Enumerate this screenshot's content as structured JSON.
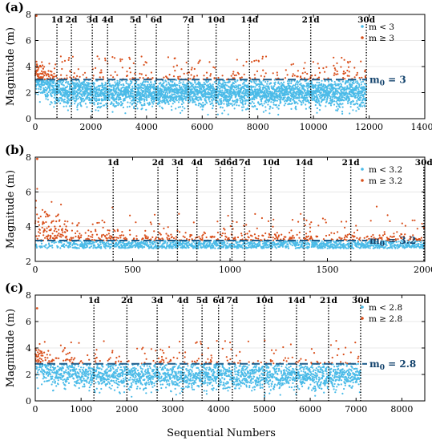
{
  "figure": {
    "shared_ylabel": "Magnitude (m)",
    "xlabel": "Sequential Numbers"
  },
  "colors": {
    "below": "#4bbbe8",
    "above": "#d9501c",
    "threshold_line": "#1b5b8a",
    "day_line": "#000000"
  },
  "chart_data": [
    {
      "type": "scatter",
      "panel_label": "(a)",
      "xlim": [
        0,
        14000
      ],
      "ylim": [
        0,
        8
      ],
      "xticks": [
        "0",
        "2000",
        "4000",
        "6000",
        "8000",
        "10000",
        "12000",
        "14000"
      ],
      "yticks": [
        "0",
        "2",
        "4",
        "6",
        "8"
      ],
      "ylabel": "Magnitude (m)",
      "n_events": 11900,
      "threshold": 3,
      "threshold_label_prefix": "m",
      "threshold_label_sub": "0",
      "threshold_label_suffix": " = 3",
      "legend": [
        "m < 3",
        "m ≥ 3"
      ],
      "day_markers": [
        {
          "label": "1d",
          "x": 780
        },
        {
          "label": "2d",
          "x": 1300
        },
        {
          "label": "3d",
          "x": 2050
        },
        {
          "label": "4d",
          "x": 2600
        },
        {
          "label": "5d",
          "x": 3600
        },
        {
          "label": "6d",
          "x": 4350
        },
        {
          "label": "7d",
          "x": 5500
        },
        {
          "label": "10d",
          "x": 6500
        },
        {
          "label": "14d",
          "x": 7700
        },
        {
          "label": "21d",
          "x": 9900
        },
        {
          "label": "30d",
          "x": 11900
        }
      ],
      "series": [
        {
          "name": "m < 3",
          "values_summary": "dense points mostly between 0.5 and 3.0 across x = 0–11900"
        },
        {
          "name": "m ≥ 3",
          "values_summary": "sparse points between 3.0 and 5.5, densest for x < 600, max near 8 at x ≈ 50"
        }
      ]
    },
    {
      "type": "scatter",
      "panel_label": "(b)",
      "xlim": [
        0,
        2000
      ],
      "ylim": [
        2,
        8
      ],
      "xticks": [
        "0",
        "500",
        "1000",
        "1500",
        "2000"
      ],
      "yticks": [
        "2",
        "4",
        "6",
        "8"
      ],
      "ylabel": "Magnitude (m)",
      "n_events": 2000,
      "threshold": 3.2,
      "threshold_label_prefix": "m",
      "threshold_label_sub": "0",
      "threshold_label_suffix": " = 3.2",
      "legend": [
        "m < 3.2",
        "m ≥ 3.2"
      ],
      "day_markers": [
        {
          "label": "1d",
          "x": 400
        },
        {
          "label": "2d",
          "x": 630
        },
        {
          "label": "3d",
          "x": 730
        },
        {
          "label": "4d",
          "x": 830
        },
        {
          "label": "5d",
          "x": 950
        },
        {
          "label": "6d",
          "x": 1010
        },
        {
          "label": "7d",
          "x": 1075
        },
        {
          "label": "10d",
          "x": 1210
        },
        {
          "label": "14d",
          "x": 1380
        },
        {
          "label": "21d",
          "x": 1620
        },
        {
          "label": "30d",
          "x": 1995
        }
      ],
      "series": [
        {
          "name": "m < 3.2",
          "values_summary": "points between 2.7 and 3.2"
        },
        {
          "name": "m ≥ 3.2",
          "values_summary": "points between 3.2 and 5.5, max near 8 at x ≈ 10"
        }
      ]
    },
    {
      "type": "scatter",
      "panel_label": "(c)",
      "xlim": [
        0,
        8500
      ],
      "ylim": [
        0,
        8
      ],
      "xticks": [
        "0",
        "1000",
        "2000",
        "3000",
        "4000",
        "5000",
        "6000",
        "7000",
        "8000"
      ],
      "yticks": [
        "0",
        "2",
        "4",
        "6",
        "8"
      ],
      "ylabel": "Magnitude (m)",
      "n_events": 7100,
      "threshold": 2.8,
      "threshold_label_prefix": "m",
      "threshold_label_sub": "0",
      "threshold_label_suffix": " = 2.8",
      "legend": [
        "m < 2.8",
        "m ≥ 2.8"
      ],
      "day_markers": [
        {
          "label": "1d",
          "x": 1280
        },
        {
          "label": "2d",
          "x": 2000
        },
        {
          "label": "3d",
          "x": 2660
        },
        {
          "label": "4d",
          "x": 3220
        },
        {
          "label": "5d",
          "x": 3640
        },
        {
          "label": "6d",
          "x": 4000
        },
        {
          "label": "7d",
          "x": 4300
        },
        {
          "label": "10d",
          "x": 5000
        },
        {
          "label": "14d",
          "x": 5700
        },
        {
          "label": "21d",
          "x": 6400
        },
        {
          "label": "30d",
          "x": 7100
        }
      ],
      "series": [
        {
          "name": "m < 2.8",
          "values_summary": "dense points mostly between 0.8 and 2.8 across x = 0–7100"
        },
        {
          "name": "m ≥ 2.8",
          "values_summary": "sparse points between 2.8 and 5.5, max near 7 at x ≈ 20"
        }
      ]
    }
  ]
}
